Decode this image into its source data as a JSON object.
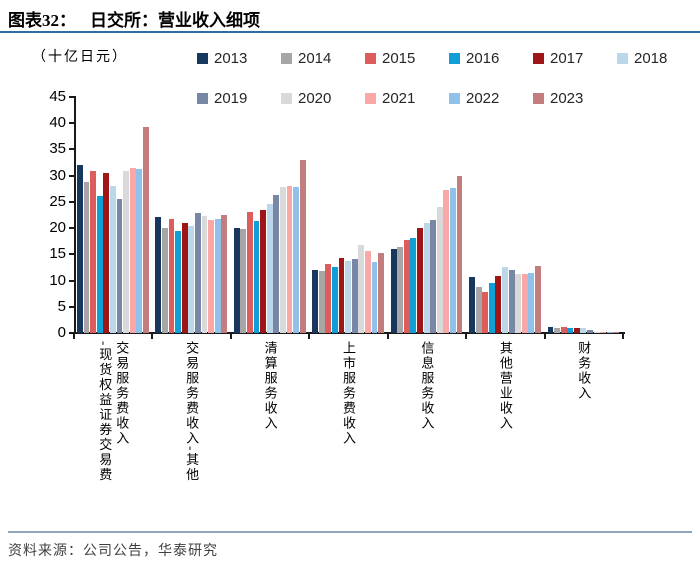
{
  "header": {
    "title_prefix": "图表32：",
    "title": "日交所：营业收入细项"
  },
  "footer": {
    "source": "资料来源：公司公告，华泰研究"
  },
  "chart_data": {
    "type": "bar",
    "title": "日交所：营业收入细项",
    "unit_label": "（十亿日元）",
    "ylabel": "十亿日元",
    "ylim": [
      0,
      45
    ],
    "yticks": [
      0,
      5,
      10,
      15,
      20,
      25,
      30,
      35,
      40,
      45
    ],
    "grid": false,
    "legend_position": "top",
    "categories": [
      "交易服务费收入-现货权益证券交易费",
      "交易服务费收入-其他",
      "清算服务收入",
      "上市服务费收入",
      "信息服务收入",
      "其他营业收入",
      "财务收入"
    ],
    "category_display_lines": [
      [
        "交易服务费收入",
        "-现货权益证券交易费"
      ],
      [
        "交易服务费收入-其他"
      ],
      [
        "清算服务收入"
      ],
      [
        "上市服务费收入"
      ],
      [
        "信息服务收入"
      ],
      [
        "其他营业收入"
      ],
      [
        "财务收入"
      ]
    ],
    "series": [
      {
        "name": "2013",
        "color": "#17375e",
        "values": [
          32.0,
          22.2,
          20.0,
          12.1,
          16.0,
          10.7,
          1.1
        ]
      },
      {
        "name": "2014",
        "color": "#a6a6a6",
        "values": [
          28.8,
          20.0,
          19.8,
          11.9,
          16.4,
          8.7,
          0.9
        ]
      },
      {
        "name": "2015",
        "color": "#dd5c5c",
        "values": [
          30.8,
          21.7,
          23.0,
          13.1,
          17.8,
          7.9,
          1.2
        ]
      },
      {
        "name": "2016",
        "color": "#0f9ed5",
        "values": [
          26.1,
          19.5,
          21.3,
          12.5,
          18.2,
          9.5,
          1.0
        ]
      },
      {
        "name": "2017",
        "color": "#9e1616",
        "values": [
          30.6,
          21.0,
          23.4,
          14.3,
          20.0,
          10.8,
          1.0
        ]
      },
      {
        "name": "2018",
        "color": "#bdd7ea",
        "values": [
          28.0,
          20.4,
          24.6,
          13.7,
          21.0,
          12.5,
          1.0
        ]
      },
      {
        "name": "2019",
        "color": "#7787a5",
        "values": [
          25.6,
          22.8,
          26.3,
          14.1,
          21.6,
          12.1,
          0.5
        ]
      },
      {
        "name": "2020",
        "color": "#d9d9d9",
        "values": [
          30.9,
          22.4,
          27.9,
          16.7,
          24.0,
          11.3,
          0.2
        ]
      },
      {
        "name": "2021",
        "color": "#f9a7a7",
        "values": [
          31.5,
          21.6,
          28.1,
          15.6,
          27.2,
          11.3,
          0.1
        ]
      },
      {
        "name": "2022",
        "color": "#8fc1ea",
        "values": [
          31.3,
          21.8,
          27.9,
          13.5,
          27.7,
          11.4,
          0.1
        ]
      },
      {
        "name": "2023",
        "color": "#c47d7d",
        "values": [
          39.2,
          22.5,
          32.9,
          15.3,
          29.9,
          12.8,
          0.1
        ]
      }
    ]
  }
}
